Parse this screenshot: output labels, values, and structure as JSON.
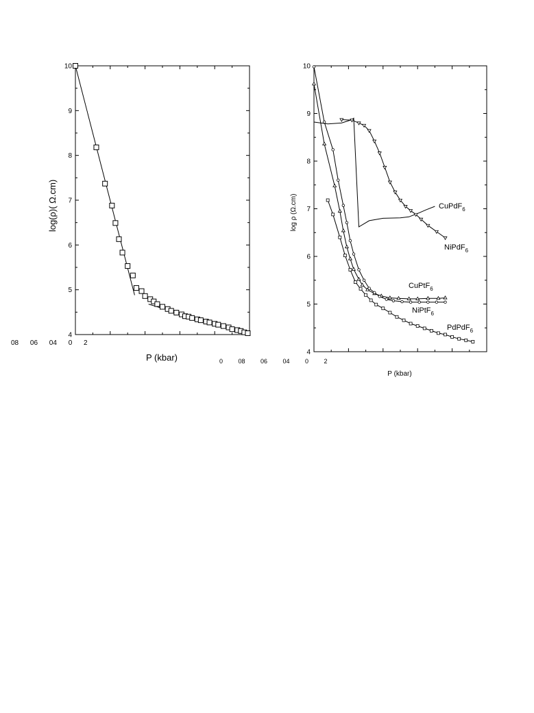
{
  "chart_data": [
    {
      "type": "scatter",
      "title": "",
      "xlabel": "P (kbar)",
      "ylabel": "log(ρ)( Ω.cm)",
      "ylim": [
        4,
        10
      ],
      "xlim": [
        0,
        100
      ],
      "yticks": [
        "4",
        "5",
        "6",
        "7",
        "8",
        "9",
        "10"
      ],
      "xtick_text": "08 06 04 0 2",
      "grid": false,
      "series": [
        {
          "marker": "square",
          "points": [
            [
              0,
              10.0
            ],
            [
              12,
              8.18
            ],
            [
              17,
              7.37
            ],
            [
              21,
              6.88
            ],
            [
              23,
              6.49
            ],
            [
              25,
              6.13
            ],
            [
              27,
              5.83
            ],
            [
              30,
              5.53
            ],
            [
              33,
              5.32
            ],
            [
              35,
              5.04
            ],
            [
              38,
              4.97
            ],
            [
              40,
              4.86
            ],
            [
              43,
              4.79
            ],
            [
              45,
              4.74
            ],
            [
              47,
              4.68
            ],
            [
              50,
              4.62
            ],
            [
              53,
              4.57
            ],
            [
              55,
              4.53
            ],
            [
              58,
              4.49
            ],
            [
              61,
              4.45
            ],
            [
              63,
              4.41
            ],
            [
              65,
              4.4
            ],
            [
              67,
              4.37
            ],
            [
              70,
              4.34
            ],
            [
              72,
              4.32
            ],
            [
              75,
              4.29
            ],
            [
              77,
              4.27
            ],
            [
              80,
              4.24
            ],
            [
              82,
              4.22
            ],
            [
              85,
              4.19
            ],
            [
              88,
              4.16
            ],
            [
              90,
              4.12
            ],
            [
              93,
              4.1
            ],
            [
              95,
              4.08
            ],
            [
              97,
              4.05
            ],
            [
              99,
              4.03
            ]
          ]
        }
      ],
      "fits": [
        {
          "points": [
            [
              0,
              10.0
            ],
            [
              34,
              4.88
            ]
          ]
        },
        {
          "points": [
            [
              42,
              4.68
            ],
            [
              70,
              4.35
            ],
            [
              100,
              4.02
            ]
          ]
        }
      ]
    },
    {
      "type": "line",
      "title": "",
      "xlabel": "P (kbar)",
      "ylabel": "log ρ (Ω.cm)",
      "ylim": [
        4,
        10
      ],
      "xlim": [
        0,
        100
      ],
      "yticks": [
        "4",
        "5",
        "6",
        "7",
        "8",
        "9",
        "10"
      ],
      "xtick_text": "0 08 06 04 0 2",
      "grid": false,
      "series": [
        {
          "name": "CuPdF6",
          "marker": "none",
          "points": [
            [
              0,
              8.82
            ],
            [
              8,
              8.78
            ],
            [
              16,
              8.8
            ],
            [
              22,
              8.87
            ],
            [
              23,
              8.9
            ],
            [
              26,
              6.62
            ],
            [
              32,
              6.75
            ],
            [
              40,
              6.8
            ],
            [
              50,
              6.81
            ],
            [
              55,
              6.83
            ],
            [
              60,
              6.9
            ],
            [
              65,
              6.98
            ],
            [
              70,
              7.05
            ]
          ]
        },
        {
          "name": "NiPdF6",
          "marker": "triangle-down",
          "points": [
            [
              16,
              8.87
            ],
            [
              22,
              8.86
            ],
            [
              26,
              8.8
            ],
            [
              29,
              8.75
            ],
            [
              32,
              8.64
            ],
            [
              35,
              8.42
            ],
            [
              38,
              8.17
            ],
            [
              41,
              7.87
            ],
            [
              44,
              7.56
            ],
            [
              47,
              7.35
            ],
            [
              50,
              7.18
            ],
            [
              53,
              7.05
            ],
            [
              56,
              6.96
            ],
            [
              59,
              6.88
            ],
            [
              62,
              6.78
            ],
            [
              66,
              6.65
            ],
            [
              71,
              6.52
            ],
            [
              76,
              6.39
            ]
          ]
        },
        {
          "name": "CuPtF6",
          "marker": "triangle-up",
          "points": [
            [
              0,
              9.62
            ],
            [
              6,
              8.36
            ],
            [
              12,
              7.48
            ],
            [
              15,
              6.95
            ],
            [
              17,
              6.54
            ],
            [
              19,
              6.2
            ],
            [
              21,
              5.95
            ],
            [
              23,
              5.73
            ],
            [
              26,
              5.52
            ],
            [
              28,
              5.4
            ],
            [
              31,
              5.3
            ],
            [
              35,
              5.22
            ],
            [
              39,
              5.17
            ],
            [
              44,
              5.13
            ],
            [
              49,
              5.12
            ],
            [
              55,
              5.11
            ],
            [
              60,
              5.11
            ],
            [
              66,
              5.12
            ],
            [
              72,
              5.12
            ],
            [
              76,
              5.13
            ]
          ]
        },
        {
          "name": "NiPtF6",
          "marker": "circle",
          "points": [
            [
              0,
              9.98
            ],
            [
              6,
              8.82
            ],
            [
              11,
              8.24
            ],
            [
              14,
              7.6
            ],
            [
              17,
              7.07
            ],
            [
              19,
              6.71
            ],
            [
              21,
              6.33
            ],
            [
              23,
              6.05
            ],
            [
              26,
              5.72
            ],
            [
              29,
              5.5
            ],
            [
              32,
              5.33
            ],
            [
              35,
              5.24
            ],
            [
              38,
              5.16
            ],
            [
              42,
              5.1
            ],
            [
              46,
              5.07
            ],
            [
              51,
              5.05
            ],
            [
              56,
              5.04
            ],
            [
              61,
              5.04
            ],
            [
              66,
              5.04
            ],
            [
              71,
              5.04
            ],
            [
              76,
              5.04
            ]
          ]
        },
        {
          "name": "PdPdF6",
          "marker": "square-small",
          "points": [
            [
              8,
              7.18
            ],
            [
              11,
              6.88
            ],
            [
              15,
              6.4
            ],
            [
              18,
              6.02
            ],
            [
              21,
              5.72
            ],
            [
              24,
              5.46
            ],
            [
              27,
              5.32
            ],
            [
              30,
              5.19
            ],
            [
              33,
              5.08
            ],
            [
              36,
              4.99
            ],
            [
              40,
              4.91
            ],
            [
              44,
              4.82
            ],
            [
              48,
              4.73
            ],
            [
              52,
              4.66
            ],
            [
              56,
              4.59
            ],
            [
              60,
              4.54
            ],
            [
              64,
              4.49
            ],
            [
              68,
              4.44
            ],
            [
              72,
              4.39
            ],
            [
              76,
              4.36
            ],
            [
              80,
              4.31
            ],
            [
              84,
              4.27
            ],
            [
              88,
              4.24
            ],
            [
              92,
              4.21
            ]
          ]
        }
      ],
      "series_labels": [
        "CuPdF6",
        "NiPdF6",
        "CuPtF6",
        "NiPtF6",
        "PdPdF6"
      ]
    }
  ]
}
